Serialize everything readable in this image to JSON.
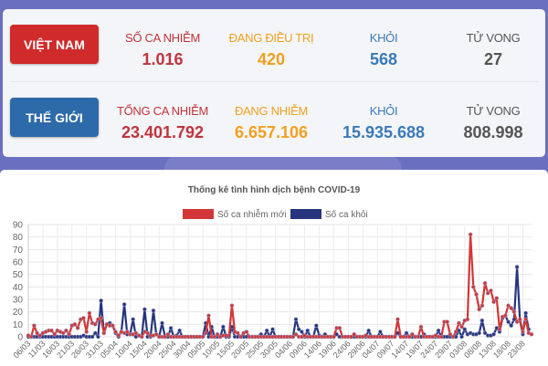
{
  "vietnam": {
    "label": "VIỆT NAM",
    "stats": [
      {
        "label": "SỐ CA NHIỄM",
        "value": "1.016",
        "color": "#c0343c"
      },
      {
        "label": "ĐANG ĐIỀU TRỊ",
        "value": "420",
        "color": "#f0a020"
      },
      {
        "label": "KHỎI",
        "value": "568",
        "color": "#3a7ab8"
      },
      {
        "label": "TỬ VONG",
        "value": "27",
        "color": "#555555"
      }
    ]
  },
  "world": {
    "label": "THẾ GIỚI",
    "stats": [
      {
        "label": "TỔNG CA NHIỄM",
        "value": "23.401.792",
        "color": "#c0343c"
      },
      {
        "label": "ĐANG NHIỄM",
        "value": "6.657.106",
        "color": "#f0a020"
      },
      {
        "label": "KHỎI",
        "value": "15.935.688",
        "color": "#3a7ab8"
      },
      {
        "label": "TỬ VONG",
        "value": "808.998",
        "color": "#555555"
      }
    ]
  },
  "chart_data": {
    "type": "line",
    "title": "Thống kê tình hình dịch bệnh COVID-19",
    "ylim": [
      0,
      90
    ],
    "yticks": [
      0,
      10,
      20,
      30,
      40,
      50,
      60,
      70,
      80,
      90
    ],
    "grid": true,
    "legend_position": "top",
    "x_start": "06/03",
    "x_end": "23/08",
    "x_step_days": 1,
    "xtick_labels": [
      "06/03",
      "11/03",
      "16/03",
      "21/03",
      "26/03",
      "31/03",
      "05/04",
      "10/04",
      "15/04",
      "20/04",
      "25/04",
      "30/04",
      "05/05",
      "10/05",
      "15/05",
      "20/05",
      "25/05",
      "30/05",
      "04/06",
      "09/06",
      "14/06",
      "19/06",
      "24/06",
      "29/06",
      "04/07",
      "09/07",
      "14/07",
      "19/07",
      "24/07",
      "29/07",
      "03/08",
      "08/08",
      "13/08",
      "18/08",
      "23/08"
    ],
    "series": [
      {
        "name": "Số ca nhiễm mới",
        "color": "#d23636",
        "values": [
          1,
          0,
          9,
          3,
          1,
          3,
          4,
          5,
          5,
          2,
          5,
          4,
          3,
          5,
          2,
          9,
          10,
          7,
          14,
          15,
          4,
          19,
          11,
          10,
          14,
          15,
          3,
          10,
          9,
          9,
          4,
          1,
          4,
          3,
          4,
          2,
          2,
          3,
          1,
          0,
          4,
          3,
          1,
          1,
          2,
          0,
          0,
          0,
          2,
          0,
          0,
          0,
          0,
          0,
          0,
          0,
          0,
          0,
          0,
          0,
          0,
          3,
          17,
          0,
          0,
          2,
          0,
          1,
          1,
          1,
          25,
          4,
          3,
          0,
          3,
          4,
          0,
          0,
          0,
          0,
          0,
          0,
          0,
          0,
          0,
          0,
          0,
          0,
          0,
          0,
          0,
          0,
          2,
          0,
          0,
          1,
          0,
          0,
          0,
          0,
          0,
          0,
          0,
          0,
          0,
          0,
          7,
          7,
          0,
          0,
          0,
          0,
          2,
          0,
          0,
          0,
          1,
          0,
          0,
          0,
          0,
          0,
          0,
          0,
          0,
          0,
          0,
          14,
          0,
          0,
          0,
          0,
          2,
          0,
          0,
          8,
          0,
          0,
          0,
          0,
          1,
          0,
          0,
          12,
          12,
          2,
          0,
          4,
          11,
          8,
          13,
          14,
          82,
          40,
          34,
          22,
          25,
          43,
          35,
          37,
          28,
          31,
          6,
          16,
          17,
          25,
          23,
          20,
          12,
          14,
          4,
          14,
          3,
          2
        ]
      },
      {
        "name": "Số ca khỏi",
        "color": "#27357e",
        "values": [
          0,
          0,
          0,
          0,
          0,
          0,
          0,
          0,
          0,
          0,
          0,
          0,
          0,
          0,
          0,
          0,
          0,
          0,
          0,
          1,
          0,
          0,
          0,
          3,
          0,
          29,
          3,
          10,
          11,
          9,
          3,
          0,
          4,
          26,
          2,
          2,
          14,
          0,
          1,
          0,
          22,
          0,
          0,
          21,
          2,
          0,
          11,
          0,
          0,
          7,
          0,
          1,
          5,
          0,
          0,
          0,
          0,
          0,
          0,
          0,
          0,
          11,
          0,
          8,
          0,
          0,
          0,
          8,
          0,
          0,
          8,
          0,
          0,
          0,
          0,
          0,
          0,
          0,
          0,
          0,
          2,
          0,
          5,
          0,
          6,
          0,
          0,
          0,
          0,
          0,
          0,
          0,
          14,
          6,
          4,
          0,
          5,
          0,
          0,
          9,
          1,
          0,
          2,
          0,
          0,
          0,
          2,
          0,
          0,
          0,
          0,
          0,
          0,
          0,
          0,
          0,
          0,
          5,
          0,
          0,
          0,
          4,
          0,
          0,
          0,
          0,
          0,
          3,
          0,
          0,
          3,
          0,
          0,
          0,
          0,
          0,
          2,
          0,
          0,
          0,
          0,
          5,
          0,
          0,
          0,
          0,
          0,
          0,
          5,
          0,
          6,
          2,
          3,
          2,
          2,
          3,
          13,
          3,
          1,
          1,
          2,
          7,
          4,
          15,
          17,
          12,
          9,
          14,
          56,
          13,
          2,
          19,
          6
        ]
      }
    ]
  }
}
